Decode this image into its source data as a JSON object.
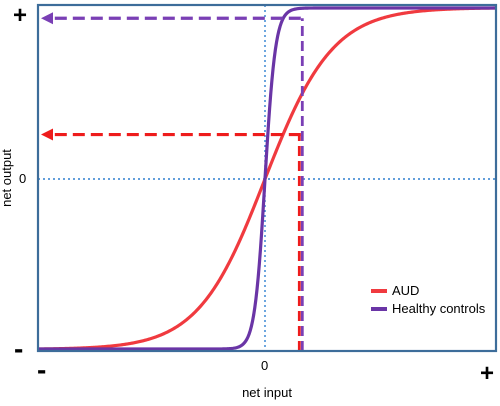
{
  "chart_data": {
    "type": "line",
    "xlabel": "net input",
    "ylabel": "net output",
    "x_ticks": {
      "left": "-",
      "center": "0",
      "right": "+"
    },
    "y_ticks": {
      "top": "+",
      "center": "0",
      "bottom": "-"
    },
    "xlim": [
      -1,
      1
    ],
    "ylim": [
      -1,
      1
    ],
    "reference_lines": {
      "x": 0,
      "y": 0,
      "style": "dotted"
    },
    "series": [
      {
        "name": "AUD",
        "color": "#f03a3f",
        "steepness": 3.4
      },
      {
        "name": "Healthy controls",
        "color": "#6a35a6",
        "steepness": 22
      }
    ],
    "projections": [
      {
        "series": "AUD",
        "x": 0.155,
        "y": 0.26,
        "color": "#ee1c1c"
      },
      {
        "series": "Healthy controls",
        "x": 0.155,
        "y": 0.94,
        "color": "#7a3fb5"
      }
    ],
    "legend": {
      "position": "bottom-right"
    },
    "frame_color": "#3d6d9a",
    "grid": false
  }
}
